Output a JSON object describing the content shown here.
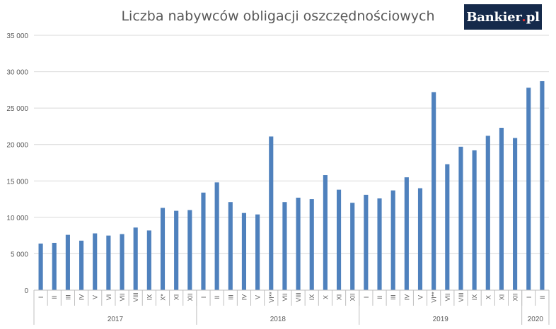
{
  "chart_data": {
    "type": "bar",
    "title": "Liczba nabywców obligacji oszczędnościowych",
    "xlabel": "",
    "ylabel": "",
    "ylim": [
      0,
      35000
    ],
    "yticks": [
      "0",
      "5 000",
      "10 000",
      "15 000",
      "20 000",
      "25 000",
      "30 000",
      "35 000"
    ],
    "grid": true,
    "legend": "none",
    "colors": {
      "bar": "#4f81bd",
      "grid": "#d9d9d9",
      "axis": "#bfbfbf",
      "text": "#595959"
    },
    "categories": [
      "I",
      "II",
      "III",
      "IV",
      "V",
      "VI",
      "VII",
      "VIII",
      "IX",
      "X*",
      "XI",
      "XII",
      "I",
      "II",
      "III",
      "IV",
      "V",
      "VI**",
      "VII",
      "VIII",
      "IX",
      "X",
      "XI",
      "XII",
      "I",
      "II",
      "III",
      "IV",
      "V",
      "VI**",
      "VII",
      "VIII",
      "IX",
      "X",
      "XI",
      "XII",
      "I",
      "II"
    ],
    "values": [
      6400,
      6500,
      7600,
      6800,
      7800,
      7500,
      7700,
      8600,
      8200,
      11300,
      10900,
      11000,
      13400,
      14800,
      12100,
      10600,
      10400,
      21100,
      12100,
      12700,
      12500,
      15800,
      13800,
      12000,
      13100,
      12600,
      13700,
      15500,
      14000,
      27200,
      17300,
      19700,
      19200,
      21200,
      22300,
      20900,
      27800,
      28700
    ],
    "groups": [
      {
        "label": "2017",
        "count": 12
      },
      {
        "label": "2018",
        "count": 12
      },
      {
        "label": "2019",
        "count": 12
      },
      {
        "label": "2020",
        "count": 2
      }
    ]
  },
  "logo": {
    "text": "Bankier",
    "dot": ".",
    "suffix": "pl"
  }
}
